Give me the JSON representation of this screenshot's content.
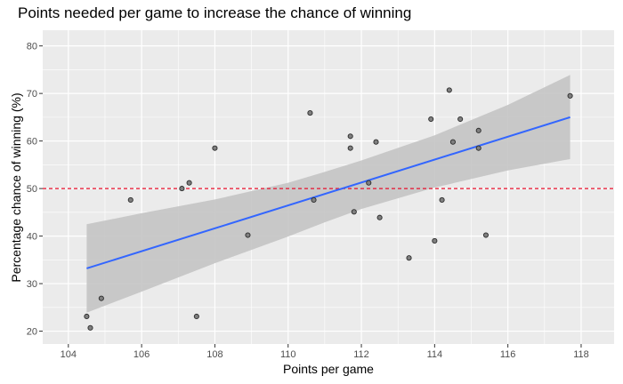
{
  "chart_data": {
    "type": "scatter",
    "title": "Points needed per game to increase the chance of winning",
    "xlabel": "Points per game",
    "ylabel": "Percentage chance of winning (%)",
    "xlim": [
      103.3,
      118.9
    ],
    "ylim": [
      17.3,
      83.3
    ],
    "x_ticks": [
      104,
      106,
      108,
      110,
      112,
      114,
      116,
      118
    ],
    "y_ticks": [
      20,
      30,
      40,
      50,
      60,
      70,
      80
    ],
    "grid": true,
    "points": [
      {
        "x": 104.5,
        "y": 23.1
      },
      {
        "x": 104.6,
        "y": 20.7
      },
      {
        "x": 104.9,
        "y": 26.9
      },
      {
        "x": 105.7,
        "y": 47.6
      },
      {
        "x": 107.1,
        "y": 50.0
      },
      {
        "x": 107.3,
        "y": 51.2
      },
      {
        "x": 107.5,
        "y": 23.1
      },
      {
        "x": 108.0,
        "y": 58.5
      },
      {
        "x": 108.9,
        "y": 40.2
      },
      {
        "x": 110.6,
        "y": 65.9
      },
      {
        "x": 110.7,
        "y": 47.6
      },
      {
        "x": 111.7,
        "y": 58.5
      },
      {
        "x": 111.7,
        "y": 61.0
      },
      {
        "x": 111.8,
        "y": 45.1
      },
      {
        "x": 112.2,
        "y": 51.2
      },
      {
        "x": 112.4,
        "y": 59.8
      },
      {
        "x": 112.5,
        "y": 43.9
      },
      {
        "x": 113.3,
        "y": 35.4
      },
      {
        "x": 113.9,
        "y": 64.6
      },
      {
        "x": 114.0,
        "y": 39.0
      },
      {
        "x": 114.2,
        "y": 47.6
      },
      {
        "x": 114.4,
        "y": 70.7
      },
      {
        "x": 114.5,
        "y": 59.8
      },
      {
        "x": 114.7,
        "y": 64.6
      },
      {
        "x": 115.2,
        "y": 58.5
      },
      {
        "x": 115.2,
        "y": 62.2
      },
      {
        "x": 115.4,
        "y": 40.2
      },
      {
        "x": 117.7,
        "y": 69.5
      }
    ],
    "trend_line": {
      "x": [
        104.5,
        117.7
      ],
      "y": [
        33.2,
        65.0
      ]
    },
    "confidence_band": {
      "x": [
        104.5,
        106,
        108,
        110,
        111,
        112,
        114,
        116,
        117.7
      ],
      "lower": [
        23.9,
        28.3,
        34.3,
        39.9,
        42.9,
        45.7,
        50.2,
        53.8,
        56.2
      ],
      "upper": [
        42.5,
        44.8,
        47.7,
        51.2,
        53.5,
        55.9,
        61.2,
        67.6,
        73.9
      ]
    },
    "reference_line": {
      "y": 50,
      "style": "dashed",
      "color": "#e8112d"
    },
    "colors": {
      "panel_background": "#ebebeb",
      "grid": "#ffffff",
      "point_fill": "#7f7f7f",
      "point_stroke": "#2b2b2b",
      "trend_line": "#3366ff",
      "confidence_band": "#c4c4c4"
    }
  }
}
